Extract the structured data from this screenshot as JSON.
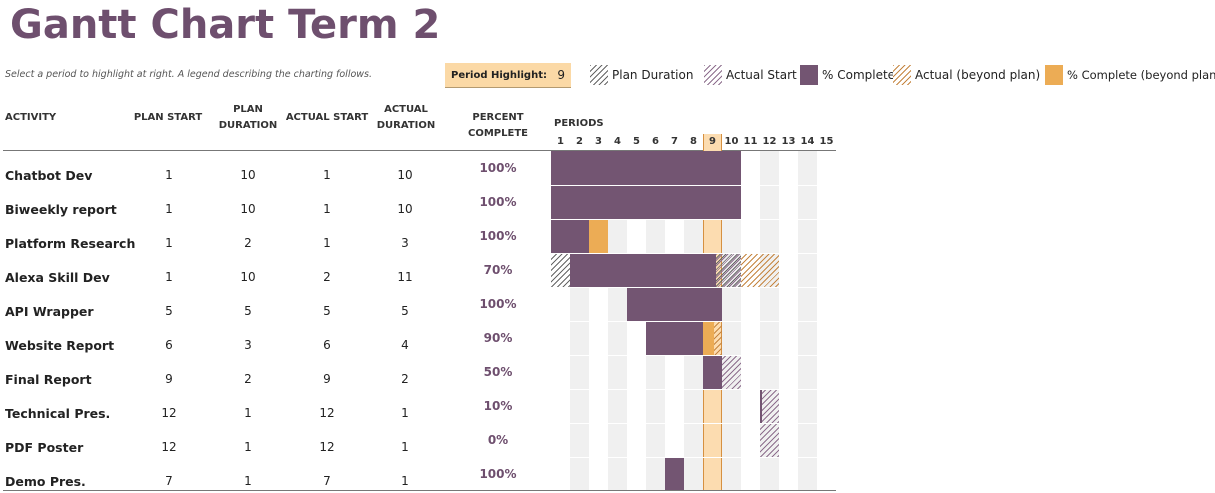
{
  "title": "Gantt Chart Term 2",
  "subtitle": "Select a period to highlight at right.  A legend describing the charting follows.",
  "period_highlight": {
    "label": "Period Highlight:",
    "value": "9"
  },
  "legend": [
    {
      "key": "plan",
      "label": "Plan Duration"
    },
    {
      "key": "actual",
      "label": "Actual Start"
    },
    {
      "key": "complete",
      "label": "% Complete"
    },
    {
      "key": "beyond",
      "label": "Actual (beyond plan)"
    },
    {
      "key": "complete-beyond",
      "label": "% Complete (beyond plan)"
    }
  ],
  "headers": {
    "activity": "ACTIVITY",
    "plan_start": "PLAN START",
    "plan_duration": "PLAN\nDURATION",
    "actual_start": "ACTUAL START",
    "actual_duration": "ACTUAL\nDURATION",
    "percent_complete": "PERCENT COMPLETE",
    "periods": "PERIODS"
  },
  "periods": [
    "1",
    "2",
    "3",
    "4",
    "5",
    "6",
    "7",
    "8",
    "9",
    "10",
    "11",
    "12",
    "13",
    "14",
    "15"
  ],
  "highlight_period": 9,
  "colors": {
    "complete": "#735572",
    "complete_beyond": "#ecac55",
    "title": "#6e4f6e",
    "highlight": "#fcdcb0"
  },
  "rows": [
    {
      "activity": "Chatbot Dev",
      "plan_start": 1,
      "plan_duration": 10,
      "actual_start": 1,
      "actual_duration": 10,
      "percent": "100%",
      "pct": 1.0
    },
    {
      "activity": "Biweekly report",
      "plan_start": 1,
      "plan_duration": 10,
      "actual_start": 1,
      "actual_duration": 10,
      "percent": "100%",
      "pct": 1.0
    },
    {
      "activity": "Platform Research",
      "plan_start": 1,
      "plan_duration": 2,
      "actual_start": 1,
      "actual_duration": 3,
      "percent": "100%",
      "pct": 1.0
    },
    {
      "activity": "Alexa Skill Dev",
      "plan_start": 1,
      "plan_duration": 10,
      "actual_start": 2,
      "actual_duration": 11,
      "percent": "70%",
      "pct": 0.7
    },
    {
      "activity": "API Wrapper",
      "plan_start": 5,
      "plan_duration": 5,
      "actual_start": 5,
      "actual_duration": 5,
      "percent": "100%",
      "pct": 1.0
    },
    {
      "activity": "Website Report",
      "plan_start": 6,
      "plan_duration": 3,
      "actual_start": 6,
      "actual_duration": 4,
      "percent": "90%",
      "pct": 0.9
    },
    {
      "activity": "Final Report",
      "plan_start": 9,
      "plan_duration": 2,
      "actual_start": 9,
      "actual_duration": 2,
      "percent": "50%",
      "pct": 0.5
    },
    {
      "activity": "Technical Pres.",
      "plan_start": 12,
      "plan_duration": 1,
      "actual_start": 12,
      "actual_duration": 1,
      "percent": "10%",
      "pct": 0.1
    },
    {
      "activity": "PDF Poster",
      "plan_start": 12,
      "plan_duration": 1,
      "actual_start": 12,
      "actual_duration": 1,
      "percent": "0%",
      "pct": 0.0
    },
    {
      "activity": "Demo Pres.",
      "plan_start": 7,
      "plan_duration": 1,
      "actual_start": 7,
      "actual_duration": 1,
      "percent": "100%",
      "pct": 1.0
    }
  ]
}
